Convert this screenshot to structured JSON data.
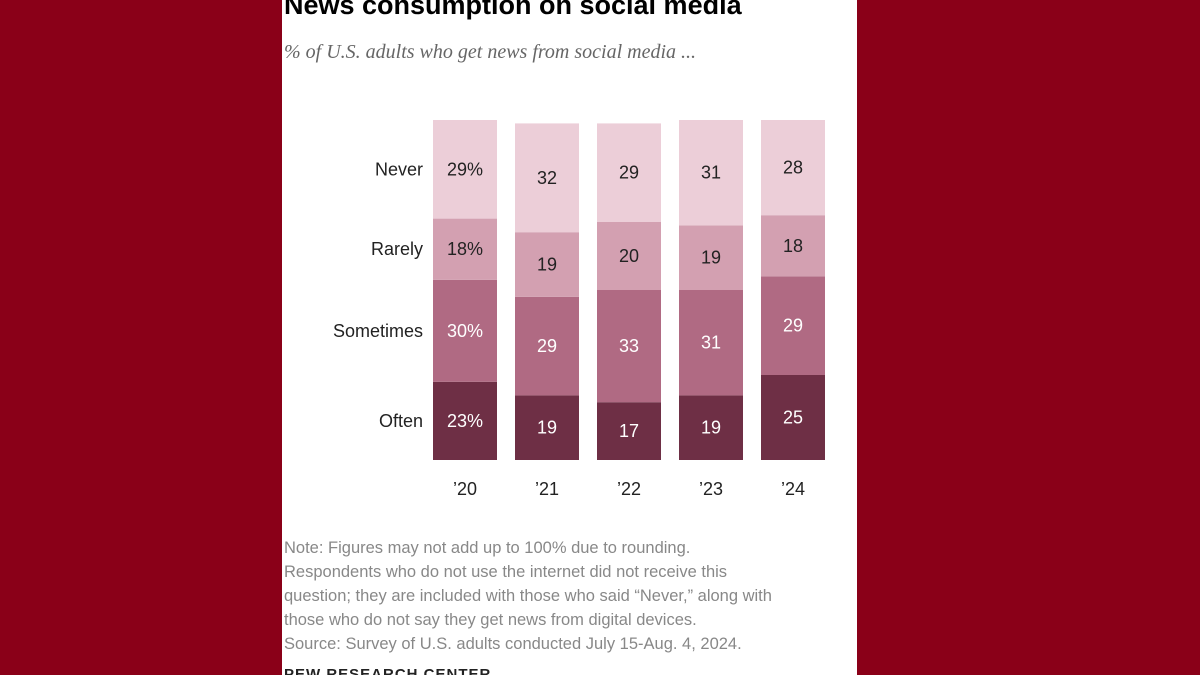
{
  "title": "News consumption on social media",
  "subtitle": "% of U.S. adults who get news from social media ...",
  "note_lines": [
    "Note: Figures may not add up to 100% due to rounding.",
    "Respondents who do not use the internet did not receive this",
    "question; they are included with those who said “Never,” along with",
    "those who do not say they get news from digital devices.",
    "Source: Survey of U.S. adults conducted July 15-Aug. 4, 2024."
  ],
  "org": "PEW RESEARCH CENTER",
  "colors": {
    "background": "#8a0018",
    "Often": "#6e2f45",
    "Sometimes": "#b06a83",
    "Rarely": "#d3a0b1",
    "Never": "#ecced8"
  },
  "chart_data": {
    "type": "bar",
    "stacked": true,
    "title": "News consumption on social media",
    "subtitle": "% of U.S. adults who get news from social media ...",
    "categories": [
      "’20",
      "’21",
      "’22",
      "’23",
      "’24"
    ],
    "series": [
      {
        "name": "Often",
        "values": [
          23,
          19,
          17,
          19,
          25
        ],
        "labels": [
          "23%",
          "19",
          "17",
          "19",
          "25"
        ]
      },
      {
        "name": "Sometimes",
        "values": [
          30,
          29,
          33,
          31,
          29
        ],
        "labels": [
          "30%",
          "29",
          "33",
          "31",
          "29"
        ]
      },
      {
        "name": "Rarely",
        "values": [
          18,
          19,
          20,
          19,
          18
        ],
        "labels": [
          "18%",
          "19",
          "20",
          "19",
          "18"
        ]
      },
      {
        "name": "Never",
        "values": [
          29,
          32,
          29,
          31,
          28
        ],
        "labels": [
          "29%",
          "32",
          "29",
          "31",
          "28"
        ]
      }
    ],
    "legend_placement": "left of first bar",
    "grid": false
  }
}
